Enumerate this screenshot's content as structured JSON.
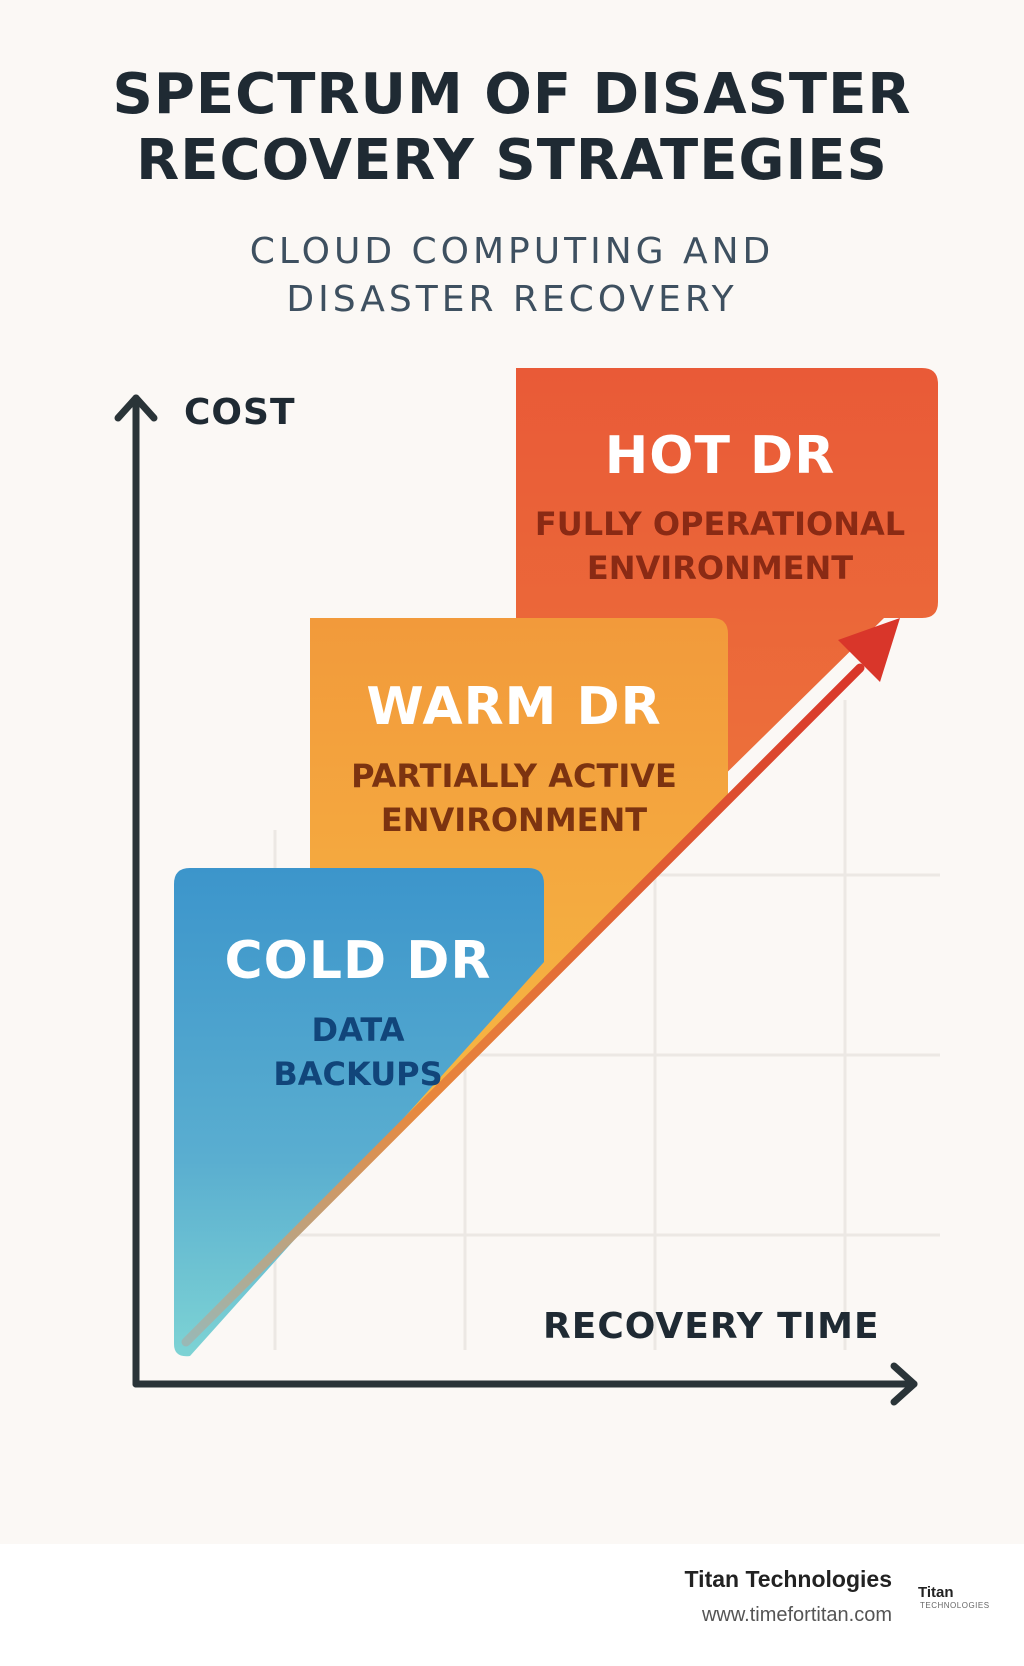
{
  "title": {
    "line1": "SPECTRUM OF DISASTER",
    "line2": "RECOVERY STRATEGIES"
  },
  "subtitle": {
    "line1": "CLOUD COMPUTING AND",
    "line2": "DISASTER RECOVERY"
  },
  "axes": {
    "y_label": "COST",
    "x_label": "RECOVERY TIME"
  },
  "tiers": {
    "hot": {
      "title": "HOT DR",
      "desc_line1": "FULLY OPERATIONAL",
      "desc_line2": "ENVIRONMENT",
      "color": "#e8573a"
    },
    "warm": {
      "title": "WARM DR",
      "desc_line1": "PARTIALLY ACTIVE",
      "desc_line2": "ENVIRONMENT",
      "color": "#f39d3c"
    },
    "cold": {
      "title": "COLD DR",
      "desc_line1": "DATA",
      "desc_line2": "BACKUPS",
      "color": "#3f96cc"
    }
  },
  "footer": {
    "company": "Titan Technologies",
    "url": "www.timefortitan.com",
    "logo_main": "Titan",
    "logo_sub": "TECHNOLOGIES"
  }
}
